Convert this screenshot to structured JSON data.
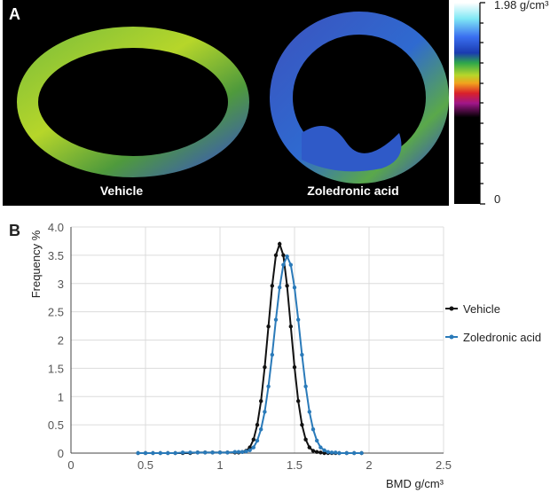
{
  "panel_a": {
    "label": "A",
    "images": [
      "Vehicle",
      "Zoledronic acid"
    ],
    "colorbar": {
      "max_label": "1.98 g/cm³",
      "min_label": "0"
    }
  },
  "chart_data": {
    "type": "line",
    "panel_label": "B",
    "y_label": "Frequency %",
    "x_label": "BMD g/cm³",
    "x": [
      0.45,
      0.5,
      0.55,
      0.6,
      0.65,
      0.7,
      0.75,
      0.8,
      0.85,
      0.9,
      0.95,
      1.0,
      1.05,
      1.1,
      1.125,
      1.15,
      1.175,
      1.2,
      1.225,
      1.25,
      1.275,
      1.3,
      1.325,
      1.35,
      1.375,
      1.4,
      1.425,
      1.45,
      1.475,
      1.5,
      1.525,
      1.55,
      1.575,
      1.6,
      1.625,
      1.65,
      1.675,
      1.7,
      1.725,
      1.75,
      1.775,
      1.8,
      1.85,
      1.9,
      1.95
    ],
    "series": [
      {
        "name": "Vehicle",
        "color": "#111111",
        "values": [
          0,
          0,
          0,
          0,
          0,
          0,
          0,
          0,
          0.01,
          0.01,
          0.01,
          0.01,
          0.01,
          0.01,
          0.01,
          0.02,
          0.04,
          0.1,
          0.24,
          0.5,
          0.92,
          1.52,
          2.24,
          2.96,
          3.5,
          3.7,
          3.5,
          2.96,
          2.24,
          1.52,
          0.92,
          0.5,
          0.24,
          0.1,
          0.04,
          0.02,
          0.01,
          0,
          0,
          0,
          0,
          0,
          0,
          0,
          0
        ]
      },
      {
        "name": "Zoledronic acid",
        "color": "#2a7ab9",
        "values": [
          0,
          0,
          0,
          0,
          0,
          0,
          0.01,
          0.01,
          0.01,
          0.01,
          0.01,
          0.01,
          0.01,
          0.02,
          0.02,
          0.02,
          0.03,
          0.05,
          0.1,
          0.22,
          0.42,
          0.73,
          1.18,
          1.74,
          2.36,
          2.93,
          3.33,
          3.48,
          3.33,
          2.93,
          2.36,
          1.74,
          1.18,
          0.73,
          0.42,
          0.22,
          0.1,
          0.05,
          0.02,
          0.01,
          0.01,
          0,
          0,
          0,
          0
        ]
      }
    ],
    "xlim": [
      0,
      2.5
    ],
    "xticks": [
      0,
      0.5,
      1,
      1.5,
      2,
      2.5
    ],
    "ylim": [
      0,
      4
    ],
    "yticks": [
      0,
      0.5,
      1,
      1.5,
      2,
      2.5,
      3,
      3.5,
      {
        "value": 4,
        "label": "4.0"
      }
    ],
    "grid": true,
    "legend": "right"
  }
}
